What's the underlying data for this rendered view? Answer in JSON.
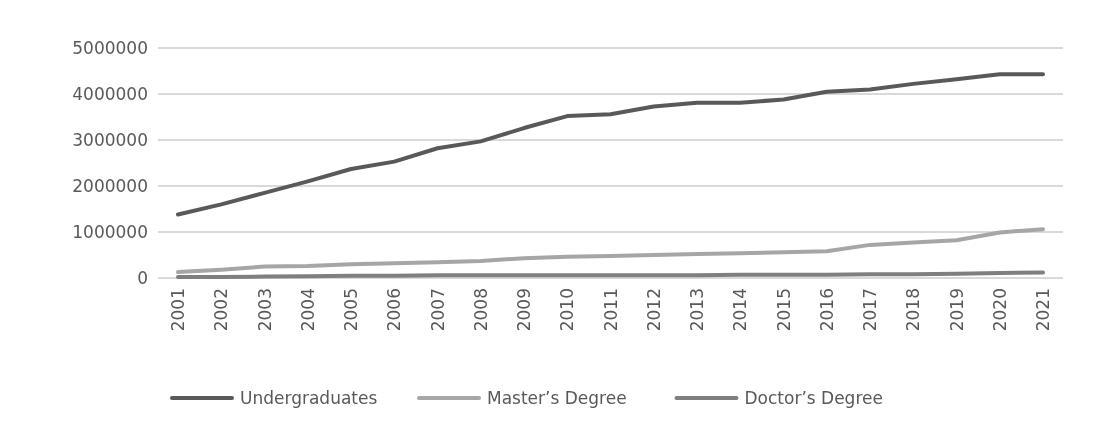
{
  "chart_data": {
    "type": "line",
    "categories": [
      "2001",
      "2002",
      "2003",
      "2004",
      "2005",
      "2006",
      "2007",
      "2008",
      "2009",
      "2010",
      "2011",
      "2012",
      "2013",
      "2014",
      "2015",
      "2016",
      "2017",
      "2018",
      "2019",
      "2020",
      "2021"
    ],
    "series": [
      {
        "name": "Undergraduates",
        "color": "#595959",
        "values": [
          1380000,
          1600000,
          1850000,
          2100000,
          2370000,
          2530000,
          2820000,
          2970000,
          3260000,
          3520000,
          3560000,
          3730000,
          3810000,
          3810000,
          3880000,
          4050000,
          4100000,
          4220000,
          4320000,
          4430000,
          4430000
        ]
      },
      {
        "name": "Master’s Degree",
        "color": "#a6a6a6",
        "values": [
          130000,
          180000,
          250000,
          260000,
          300000,
          320000,
          340000,
          370000,
          430000,
          460000,
          480000,
          500000,
          520000,
          540000,
          560000,
          580000,
          720000,
          770000,
          820000,
          990000,
          1060000
        ]
      },
      {
        "name": "Doctor’s Degree",
        "color": "#7f7f7f",
        "values": [
          20000,
          20000,
          30000,
          40000,
          50000,
          50000,
          60000,
          60000,
          60000,
          60000,
          60000,
          60000,
          60000,
          70000,
          70000,
          70000,
          80000,
          80000,
          90000,
          110000,
          120000
        ]
      }
    ],
    "ylim": [
      0,
      5000000
    ],
    "yticks": [
      0,
      1000000,
      2000000,
      3000000,
      4000000,
      5000000
    ],
    "grid": "y",
    "legend": "bottom",
    "marker": "none",
    "line_style": "solid"
  }
}
